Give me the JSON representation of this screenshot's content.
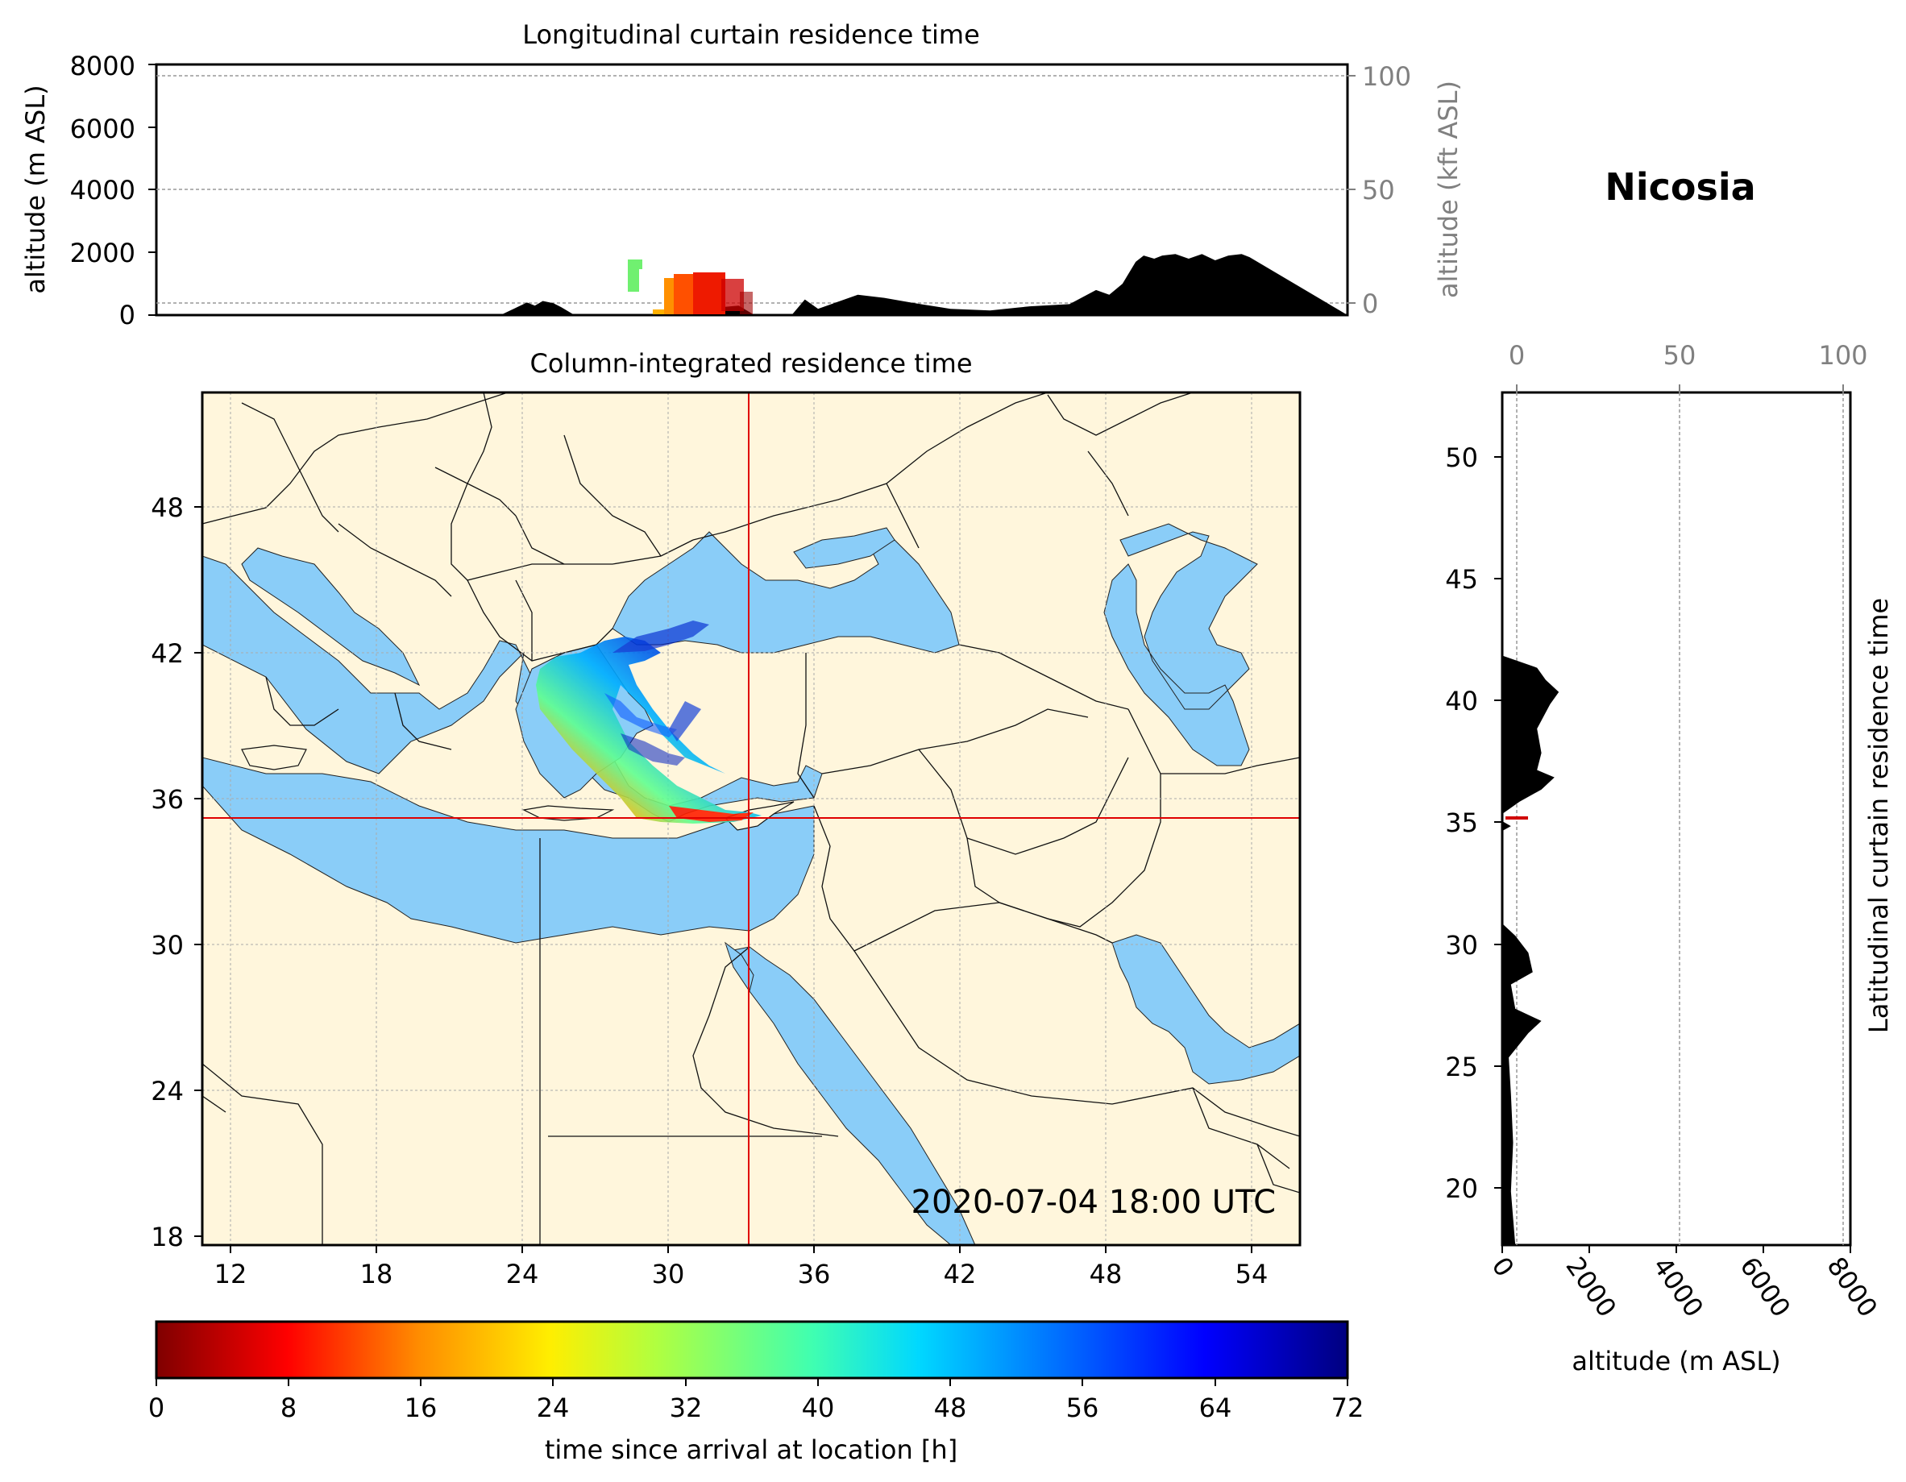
{
  "location_title": "Nicosia",
  "top_panel": {
    "title": "Longitudinal curtain residence time",
    "ylabel_left": "altitude (m ASL)",
    "ylabel_right": "altitude (kft ASL)",
    "yticks_left": [
      "0",
      "2000",
      "4000",
      "6000",
      "8000"
    ],
    "yticks_right": [
      "0",
      "50",
      "100"
    ]
  },
  "map_panel": {
    "title": "Column-integrated residence time",
    "timestamp": "2020-07-04 18:00 UTC",
    "lat_ticks": [
      "48",
      "42",
      "36",
      "30",
      "24",
      "18"
    ],
    "lon_ticks": [
      "12",
      "18",
      "24",
      "30",
      "36",
      "42",
      "48",
      "54"
    ],
    "crosshair": {
      "lon": 33.4,
      "lat": 35.2
    },
    "colors": {
      "land": "#fff6dc",
      "water": "#8acdf8",
      "crosshair": "#e00000"
    }
  },
  "side_panel": {
    "title": "Latitudinal curtain residence time",
    "xlabel": "altitude (m ASL)",
    "yticks": [
      "50",
      "45",
      "40",
      "35",
      "30",
      "25",
      "20"
    ],
    "xticks_bottom": [
      "0",
      "2000",
      "4000",
      "6000",
      "8000"
    ],
    "xticks_top": [
      "0",
      "50",
      "100"
    ]
  },
  "colorbar": {
    "label": "time since arrival at location [h]",
    "ticks": [
      "0",
      "8",
      "16",
      "24",
      "32",
      "40",
      "48",
      "56",
      "64",
      "72"
    ],
    "colormap": "jet_r"
  },
  "chart_data": {
    "type": "area",
    "lon_range": [
      11,
      56
    ],
    "lat_range": [
      17.8,
      52.8
    ],
    "altitude_range_m": [
      0,
      8000
    ],
    "residence_time_range_h": [
      0,
      72
    ],
    "longitudinal_terrain_profile": {
      "lon": [
        11,
        24.0,
        24.5,
        25.0,
        25.3,
        25.6,
        26.0,
        26.3,
        26.8,
        30.0,
        31.0,
        31.8,
        32.3,
        33.0,
        33.6,
        35.0,
        35.5,
        36.0,
        36.5,
        37.5,
        38.5,
        39.5,
        41.0,
        42.5,
        44.0,
        45.5,
        46.5,
        47.0,
        47.5,
        48.0,
        48.3,
        48.7,
        49.0,
        49.5,
        50.0,
        50.5,
        51.0,
        51.5,
        52.0,
        52.3,
        56
      ],
      "elev_m": [
        0,
        0,
        200,
        400,
        300,
        450,
        380,
        250,
        0,
        0,
        80,
        100,
        250,
        300,
        0,
        0,
        500,
        200,
        350,
        650,
        550,
        400,
        200,
        150,
        280,
        350,
        800,
        650,
        1000,
        1700,
        1900,
        1800,
        1900,
        1950,
        1800,
        1950,
        1750,
        1900,
        1950,
        1850,
        0
      ]
    },
    "latitudinal_terrain_profile": {
      "lat": [
        17.8,
        20,
        22,
        24,
        25.5,
        26.5,
        27.0,
        27.5,
        28.5,
        29.0,
        29.8,
        30.5,
        31.0,
        33,
        34.8,
        35.0,
        35.2,
        35.5,
        36.0,
        36.5,
        37.0,
        37.3,
        38.0,
        39.0,
        40.0,
        40.5,
        41.0,
        41.5,
        42.0,
        52.8
      ],
      "elev_m": [
        300,
        200,
        250,
        200,
        150,
        600,
        900,
        300,
        200,
        700,
        600,
        300,
        0,
        0,
        0,
        200,
        0,
        0,
        400,
        900,
        1200,
        800,
        900,
        800,
        1100,
        1300,
        1000,
        800,
        0,
        0
      ]
    },
    "plume_residence_time_h": {
      "approx_lon_range": [
        25,
        33
      ],
      "approx_lat_range": [
        35,
        42.5
      ],
      "h_min": 0,
      "h_max": 72
    }
  }
}
